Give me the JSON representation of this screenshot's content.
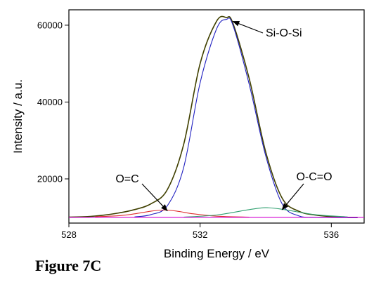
{
  "figure_caption": "Figure 7C",
  "chart_data": {
    "type": "line",
    "title": "",
    "xlabel": "Binding Energy / eV",
    "ylabel": "Intensity / a.u.",
    "xlim": [
      528,
      537
    ],
    "ylim": [
      8500,
      64000
    ],
    "x_axis_reversed": false,
    "x_ticks": [
      528,
      532,
      536
    ],
    "y_ticks": [
      20000,
      40000,
      60000
    ],
    "baseline": 10000,
    "grid": false,
    "legend": "none",
    "series": [
      {
        "color": "#404000",
        "role": "measured",
        "x": [
          528.0,
          528.5,
          529.0,
          529.5,
          530.0,
          530.5,
          531.0,
          531.5,
          532.0,
          532.5,
          532.8,
          533.0,
          533.5,
          534.0,
          534.5,
          535.0,
          535.5,
          536.0,
          536.5,
          536.8
        ],
        "y": [
          10050,
          10150,
          10500,
          11100,
          12000,
          13500,
          17200,
          29000,
          50000,
          61000,
          62000,
          60500,
          46000,
          27000,
          15000,
          11600,
          10600,
          10200,
          10000,
          9950
        ]
      },
      {
        "color": "#2020c0",
        "role": "fit",
        "x": [
          530.0,
          530.5,
          531.0,
          531.5,
          532.0,
          532.5,
          532.8,
          533.0,
          533.5,
          534.0,
          534.5,
          535.0,
          535.5,
          536.0,
          536.8
        ],
        "y": [
          10100,
          10700,
          13000,
          23000,
          45000,
          59000,
          61500,
          60000,
          44500,
          26000,
          13500,
          10400,
          10000,
          9950,
          9900
        ]
      },
      {
        "color": "#e03030",
        "role": "fit",
        "x": [
          528.8,
          529.5,
          530.0,
          530.5,
          530.9,
          531.3,
          531.8,
          532.5,
          533.5
        ],
        "y": [
          10150,
          10400,
          10900,
          11600,
          11900,
          11600,
          10900,
          10300,
          10050
        ]
      },
      {
        "color": "#30a070",
        "role": "fit",
        "x": [
          531.5,
          532.5,
          533.5,
          534.0,
          534.5,
          535.5,
          536.5
        ],
        "y": [
          10050,
          10600,
          12000,
          12500,
          12100,
          10700,
          10100
        ]
      },
      {
        "color": "#d000d0",
        "role": "baseline",
        "x": [
          528.0,
          537.0
        ],
        "y": [
          10000,
          10000
        ]
      }
    ],
    "annotations": [
      {
        "text": "Si-O-Si",
        "points_to": [
          533.0,
          61000
        ]
      },
      {
        "text": "O=C",
        "points_to": [
          531.0,
          11700
        ]
      },
      {
        "text": "O-C=O",
        "points_to": [
          534.5,
          12000
        ]
      }
    ]
  }
}
